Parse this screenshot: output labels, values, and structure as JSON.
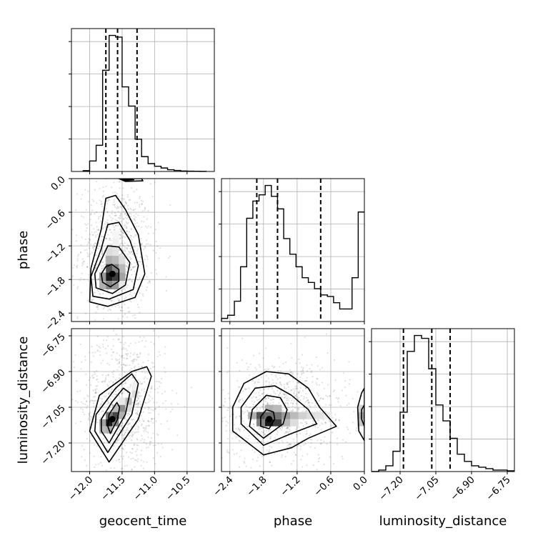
{
  "chart_data": {
    "type": "corner",
    "parameters": [
      "geocent_time",
      "phase",
      "luminosity_distance"
    ],
    "grid": true,
    "ranges": {
      "geocent_time": [
        -12.28,
        -10.08
      ],
      "phase": [
        -2.55,
        0.0
      ],
      "luminosity_distance": [
        -7.32,
        -6.72
      ]
    },
    "ticks": {
      "geocent_time": [
        -12.0,
        -11.5,
        -11.0,
        -10.5
      ],
      "phase": [
        -2.4,
        -1.8,
        -1.2,
        -0.6,
        0.0
      ],
      "luminosity_distance": [
        -7.2,
        -7.05,
        -6.9,
        -6.75
      ]
    },
    "tick_labels": {
      "geocent_time": [
        "−12.0",
        "−11.5",
        "−11.0",
        "−10.5"
      ],
      "phase": [
        "−2.4",
        "−1.8",
        "−1.2",
        "−0.6",
        "0.0"
      ],
      "luminosity_distance": [
        "−7.20",
        "−7.05",
        "−6.90",
        "−6.75"
      ]
    },
    "quantiles": {
      "geocent_time": [
        -11.75,
        -11.57,
        -11.27
      ],
      "phase": [
        -1.92,
        -1.55,
        -0.78
      ],
      "luminosity_distance": [
        -7.186,
        -7.067,
        -6.99
      ]
    },
    "histograms": {
      "geocent_time": {
        "edges": [
          -12.1,
          -12.0,
          -11.9,
          -11.8,
          -11.7,
          -11.6,
          -11.5,
          -11.4,
          -11.3,
          -11.2,
          -11.1,
          -11.0,
          -10.9,
          -10.8,
          -10.7,
          -10.6,
          -10.5,
          -10.4,
          -10.3,
          -10.2
        ],
        "counts": [
          1,
          12,
          30,
          116,
          156,
          154,
          97,
          75,
          37,
          17,
          9,
          6,
          4,
          2,
          1.2,
          0.6,
          0.3,
          0.2,
          0.1
        ]
      },
      "phase": {
        "edges": [
          -2.55,
          -2.44,
          -2.32,
          -2.21,
          -2.1,
          -1.99,
          -1.88,
          -1.77,
          -1.66,
          -1.55,
          -1.44,
          -1.33,
          -1.22,
          -1.11,
          -1.0,
          -0.89,
          -0.78,
          -0.66,
          -0.55,
          -0.44,
          -0.33,
          -0.22,
          -0.11,
          0.0
        ],
        "counts": [
          2,
          4,
          13,
          35,
          66,
          77,
          81,
          87,
          80,
          72,
          53,
          43,
          35,
          28,
          25,
          21,
          17,
          16,
          12,
          8,
          8,
          28,
          70
        ]
      },
      "luminosity_distance": {
        "edges": [
          -7.32,
          -7.29,
          -7.26,
          -7.23,
          -7.2,
          -7.17,
          -7.14,
          -7.11,
          -7.08,
          -7.05,
          -7.02,
          -6.99,
          -6.96,
          -6.93,
          -6.9,
          -6.87,
          -6.84,
          -6.81,
          -6.78,
          -6.75,
          -6.72
        ],
        "counts": [
          0,
          1,
          4,
          14,
          41,
          83,
          94,
          92,
          71,
          46,
          35,
          23,
          12,
          7,
          4,
          3,
          2,
          1,
          1,
          0.5
        ]
      }
    },
    "joint": [
      {
        "x": "geocent_time",
        "y": "phase",
        "center": [
          -11.65,
          -1.7
        ],
        "contour_levels": [
          [
            [
              -11.8,
              -1.85
            ],
            [
              -11.68,
              -1.93
            ],
            [
              -11.55,
              -1.83
            ],
            [
              -11.55,
              -1.62
            ],
            [
              -11.66,
              -1.53
            ],
            [
              -11.75,
              -1.57
            ],
            [
              -11.82,
              -1.7
            ]
          ],
          [
            [
              -11.9,
              -1.95
            ],
            [
              -11.65,
              -2.05
            ],
            [
              -11.45,
              -1.9
            ],
            [
              -11.38,
              -1.5
            ],
            [
              -11.55,
              -1.22
            ],
            [
              -11.72,
              -1.2
            ],
            [
              -11.8,
              -1.4
            ],
            [
              -11.92,
              -1.7
            ]
          ],
          [
            [
              -11.95,
              -2.1
            ],
            [
              -11.7,
              -2.15
            ],
            [
              -11.33,
              -1.98
            ],
            [
              -11.25,
              -1.55
            ],
            [
              -11.38,
              -1.1
            ],
            [
              -11.55,
              -0.78
            ],
            [
              -11.72,
              -0.82
            ],
            [
              -11.82,
              -1.25
            ],
            [
              -11.98,
              -1.75
            ]
          ],
          [
            [
              -12.0,
              -2.2
            ],
            [
              -11.72,
              -2.28
            ],
            [
              -11.3,
              -2.12
            ],
            [
              -11.15,
              -1.7
            ],
            [
              -11.25,
              -1.0
            ],
            [
              -11.45,
              -0.55
            ],
            [
              -11.6,
              -0.3
            ],
            [
              -11.75,
              -0.35
            ],
            [
              -11.82,
              -0.9
            ],
            [
              -11.98,
              -1.6
            ]
          ],
          [
            [
              -11.55,
              0.0
            ],
            [
              -11.45,
              -0.05
            ],
            [
              -11.18,
              -0.04
            ],
            [
              -11.2,
              0.0
            ]
          ],
          [
            [
              -11.5,
              0.0
            ],
            [
              -11.45,
              -0.03
            ],
            [
              -11.32,
              -0.02
            ]
          ]
        ],
        "density_cells": [
          [
            -11.7,
            -1.75,
            1.0
          ],
          [
            -11.6,
            -1.75,
            0.85
          ],
          [
            -11.7,
            -1.6,
            0.75
          ],
          [
            -11.6,
            -1.6,
            0.55
          ],
          [
            -11.7,
            -1.9,
            0.55
          ],
          [
            -11.6,
            -1.9,
            0.45
          ],
          [
            -11.8,
            -1.75,
            0.45
          ],
          [
            -11.5,
            -1.75,
            0.4
          ],
          [
            -11.8,
            -1.9,
            0.35
          ],
          [
            -11.7,
            -1.45,
            0.35
          ],
          [
            -11.6,
            -1.45,
            0.3
          ],
          [
            -11.5,
            -1.6,
            0.3
          ],
          [
            -11.5,
            -1.45,
            0.15
          ],
          [
            -11.7,
            -1.3,
            0.15
          ],
          [
            -11.6,
            -1.3,
            0.12
          ],
          [
            -11.6,
            -1.15,
            0.06
          ],
          [
            -11.5,
            -1.9,
            0.1
          ],
          [
            -11.6,
            -1.0,
            0.04
          ]
        ]
      },
      {
        "x": "geocent_time",
        "y": "luminosity_distance",
        "center": [
          -11.65,
          -7.1
        ],
        "contour_levels": [
          [
            [
              -11.72,
              -7.13
            ],
            [
              -11.68,
              -7.16
            ],
            [
              -11.57,
              -7.1
            ],
            [
              -11.54,
              -7.05
            ],
            [
              -11.58,
              -7.03
            ],
            [
              -11.7,
              -7.08
            ]
          ],
          [
            [
              -11.82,
              -7.15
            ],
            [
              -11.7,
              -7.2
            ],
            [
              -11.45,
              -7.08
            ],
            [
              -11.38,
              -6.99
            ],
            [
              -11.48,
              -6.97
            ],
            [
              -11.66,
              -7.03
            ],
            [
              -11.82,
              -7.1
            ]
          ],
          [
            [
              -11.92,
              -7.15
            ],
            [
              -11.72,
              -7.24
            ],
            [
              -11.35,
              -7.08
            ],
            [
              -11.25,
              -6.95
            ],
            [
              -11.35,
              -6.91
            ],
            [
              -11.6,
              -6.97
            ],
            [
              -11.9,
              -7.08
            ]
          ],
          [
            [
              -12.0,
              -7.15
            ],
            [
              -11.7,
              -7.28
            ],
            [
              -11.25,
              -7.1
            ],
            [
              -11.05,
              -6.92
            ],
            [
              -11.12,
              -6.88
            ],
            [
              -11.35,
              -6.9
            ],
            [
              -11.85,
              -7.0
            ]
          ]
        ],
        "density_cells": [
          [
            -11.7,
            -7.115,
            1.0
          ],
          [
            -11.6,
            -7.085,
            0.8
          ],
          [
            -11.7,
            -7.085,
            0.6
          ],
          [
            -11.6,
            -7.115,
            0.55
          ],
          [
            -11.5,
            -7.055,
            0.5
          ],
          [
            -11.8,
            -7.115,
            0.4
          ],
          [
            -11.5,
            -7.085,
            0.35
          ],
          [
            -11.4,
            -7.025,
            0.3
          ],
          [
            -11.6,
            -7.055,
            0.3
          ],
          [
            -11.8,
            -7.145,
            0.3
          ],
          [
            -11.7,
            -7.145,
            0.35
          ],
          [
            -11.4,
            -7.055,
            0.15
          ],
          [
            -11.3,
            -6.995,
            0.15
          ],
          [
            -11.5,
            -7.025,
            0.1
          ],
          [
            -11.3,
            -6.965,
            0.06
          ]
        ]
      },
      {
        "x": "phase",
        "y": "luminosity_distance",
        "center": [
          -1.7,
          -7.1
        ],
        "contour_levels": [
          [
            [
              -1.85,
              -7.13
            ],
            [
              -1.7,
              -7.14
            ],
            [
              -1.6,
              -7.1
            ],
            [
              -1.62,
              -7.07
            ],
            [
              -1.75,
              -7.06
            ],
            [
              -1.85,
              -7.09
            ]
          ],
          [
            [
              -2.05,
              -7.13
            ],
            [
              -1.8,
              -7.18
            ],
            [
              -1.45,
              -7.12
            ],
            [
              -1.38,
              -7.06
            ],
            [
              -1.5,
              -7.01
            ],
            [
              -1.75,
              -7.0
            ],
            [
              -2.0,
              -7.06
            ]
          ],
          [
            [
              -2.2,
              -7.12
            ],
            [
              -1.8,
              -7.21
            ],
            [
              -1.3,
              -7.16
            ],
            [
              -0.85,
              -7.12
            ],
            [
              -1.0,
              -7.06
            ],
            [
              -1.3,
              -7.0
            ],
            [
              -1.6,
              -6.96
            ],
            [
              -1.95,
              -6.97
            ],
            [
              -2.2,
              -7.05
            ]
          ],
          [
            [
              -2.35,
              -7.15
            ],
            [
              -1.8,
              -7.25
            ],
            [
              -1.3,
              -7.22
            ],
            [
              -1.0,
              -7.18
            ],
            [
              -0.5,
              -7.13
            ],
            [
              -0.8,
              -7.05
            ],
            [
              -1.0,
              -6.97
            ],
            [
              -1.35,
              -6.91
            ],
            [
              -1.75,
              -6.9
            ],
            [
              -2.15,
              -6.95
            ],
            [
              -2.35,
              -7.05
            ]
          ],
          [
            [
              0.0,
              -7.19
            ],
            [
              -0.1,
              -7.15
            ],
            [
              -0.12,
              -7.05
            ],
            [
              -0.05,
              -6.99
            ],
            [
              0.0,
              -6.97
            ]
          ],
          [
            [
              0.0,
              -7.13
            ],
            [
              -0.05,
              -7.1
            ],
            [
              -0.05,
              -7.06
            ],
            [
              0.0,
              -7.04
            ]
          ]
        ],
        "density_cells": [
          [
            -1.7,
            -7.115,
            1.0
          ],
          [
            -1.55,
            -7.115,
            0.85
          ],
          [
            -1.85,
            -7.085,
            0.75
          ],
          [
            -1.55,
            -7.085,
            0.6
          ],
          [
            -1.7,
            -7.085,
            0.65
          ],
          [
            -1.85,
            -7.115,
            0.55
          ],
          [
            -1.4,
            -7.085,
            0.45
          ],
          [
            -1.4,
            -7.115,
            0.3
          ],
          [
            -2.0,
            -7.085,
            0.35
          ],
          [
            -1.7,
            -7.055,
            0.35
          ],
          [
            -1.55,
            -7.055,
            0.3
          ],
          [
            -1.25,
            -7.085,
            0.3
          ],
          [
            -1.1,
            -7.085,
            0.2
          ],
          [
            -1.25,
            -7.115,
            0.15
          ],
          [
            -0.95,
            -7.085,
            0.15
          ],
          [
            -0.8,
            -7.085,
            0.12
          ],
          [
            -0.65,
            -7.085,
            0.08
          ],
          [
            -0.05,
            -7.085,
            0.35
          ],
          [
            -0.05,
            -7.115,
            0.25
          ],
          [
            -0.05,
            -7.055,
            0.2
          ]
        ]
      }
    ]
  }
}
